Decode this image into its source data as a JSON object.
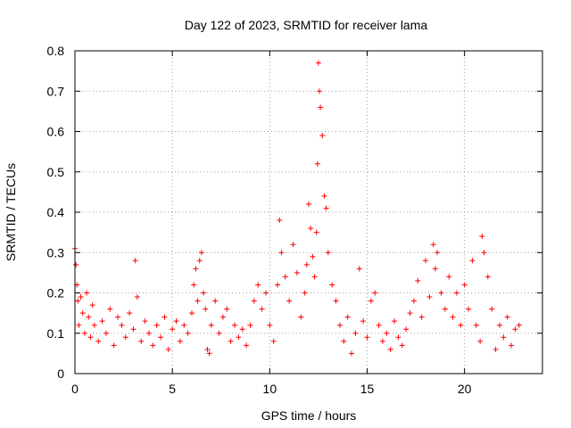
{
  "chart_data": {
    "type": "scatter",
    "title": "Day 122 of 2023, SRMTID for receiver lama",
    "xlabel": "GPS time / hours",
    "ylabel": "SRMTID / TECUs",
    "xlim": [
      0,
      24
    ],
    "ylim": [
      0,
      0.8
    ],
    "xticks": [
      0,
      5,
      10,
      15,
      20
    ],
    "yticks": [
      0,
      0.1,
      0.2,
      0.3,
      0.4,
      0.5,
      0.6,
      0.7,
      0.8
    ],
    "xtick_labels": [
      "0",
      "5",
      "10",
      "15",
      "20"
    ],
    "ytick_labels": [
      "0",
      "0.1",
      "0.2",
      "0.3",
      "0.4",
      "0.5",
      "0.6",
      "0.7",
      "0.8"
    ],
    "grid": true,
    "marker": "+",
    "color": "#ff0000",
    "series": [
      {
        "name": "SRMTID",
        "x": [
          0.0,
          0.05,
          0.1,
          0.15,
          0.2,
          0.3,
          0.4,
          0.5,
          0.6,
          0.7,
          0.8,
          0.9,
          1.0,
          1.2,
          1.4,
          1.6,
          1.8,
          2.0,
          2.2,
          2.4,
          2.6,
          2.8,
          3.0,
          3.1,
          3.2,
          3.4,
          3.6,
          3.8,
          4.0,
          4.2,
          4.4,
          4.6,
          4.8,
          5.0,
          5.2,
          5.4,
          5.6,
          5.8,
          6.0,
          6.1,
          6.2,
          6.3,
          6.4,
          6.5,
          6.6,
          6.7,
          6.8,
          6.9,
          7.0,
          7.2,
          7.4,
          7.6,
          7.8,
          8.0,
          8.2,
          8.4,
          8.6,
          8.8,
          9.0,
          9.2,
          9.4,
          9.6,
          9.8,
          10.0,
          10.2,
          10.4,
          10.5,
          10.6,
          10.8,
          11.0,
          11.2,
          11.4,
          11.6,
          11.8,
          11.9,
          12.0,
          12.1,
          12.2,
          12.3,
          12.4,
          12.45,
          12.5,
          12.55,
          12.6,
          12.7,
          12.8,
          12.9,
          13.0,
          13.2,
          13.4,
          13.6,
          13.8,
          14.0,
          14.2,
          14.4,
          14.6,
          14.8,
          15.0,
          15.2,
          15.4,
          15.6,
          15.8,
          16.0,
          16.2,
          16.4,
          16.6,
          16.8,
          17.0,
          17.2,
          17.4,
          17.6,
          17.8,
          18.0,
          18.2,
          18.4,
          18.5,
          18.6,
          18.8,
          19.0,
          19.2,
          19.4,
          19.6,
          19.8,
          20.0,
          20.2,
          20.4,
          20.6,
          20.8,
          20.9,
          21.0,
          21.2,
          21.4,
          21.6,
          21.8,
          22.0,
          22.2,
          22.4,
          22.6,
          22.8
        ],
        "y": [
          0.31,
          0.27,
          0.22,
          0.18,
          0.12,
          0.19,
          0.15,
          0.1,
          0.2,
          0.14,
          0.09,
          0.17,
          0.12,
          0.08,
          0.13,
          0.1,
          0.16,
          0.07,
          0.14,
          0.12,
          0.09,
          0.15,
          0.11,
          0.28,
          0.19,
          0.08,
          0.13,
          0.1,
          0.07,
          0.12,
          0.09,
          0.14,
          0.06,
          0.11,
          0.13,
          0.08,
          0.12,
          0.1,
          0.15,
          0.22,
          0.26,
          0.18,
          0.28,
          0.3,
          0.2,
          0.16,
          0.06,
          0.05,
          0.12,
          0.18,
          0.1,
          0.14,
          0.16,
          0.08,
          0.12,
          0.09,
          0.11,
          0.07,
          0.12,
          0.18,
          0.22,
          0.16,
          0.2,
          0.12,
          0.08,
          0.22,
          0.38,
          0.3,
          0.24,
          0.18,
          0.32,
          0.25,
          0.14,
          0.2,
          0.27,
          0.42,
          0.36,
          0.29,
          0.24,
          0.35,
          0.52,
          0.77,
          0.7,
          0.66,
          0.59,
          0.44,
          0.41,
          0.3,
          0.22,
          0.18,
          0.12,
          0.08,
          0.14,
          0.05,
          0.1,
          0.26,
          0.13,
          0.09,
          0.18,
          0.2,
          0.12,
          0.08,
          0.1,
          0.06,
          0.13,
          0.09,
          0.07,
          0.11,
          0.15,
          0.18,
          0.23,
          0.14,
          0.28,
          0.19,
          0.32,
          0.26,
          0.3,
          0.2,
          0.16,
          0.24,
          0.14,
          0.2,
          0.12,
          0.22,
          0.16,
          0.28,
          0.12,
          0.08,
          0.34,
          0.3,
          0.24,
          0.16,
          0.06,
          0.12,
          0.09,
          0.14,
          0.07,
          0.11,
          0.12
        ]
      }
    ]
  }
}
